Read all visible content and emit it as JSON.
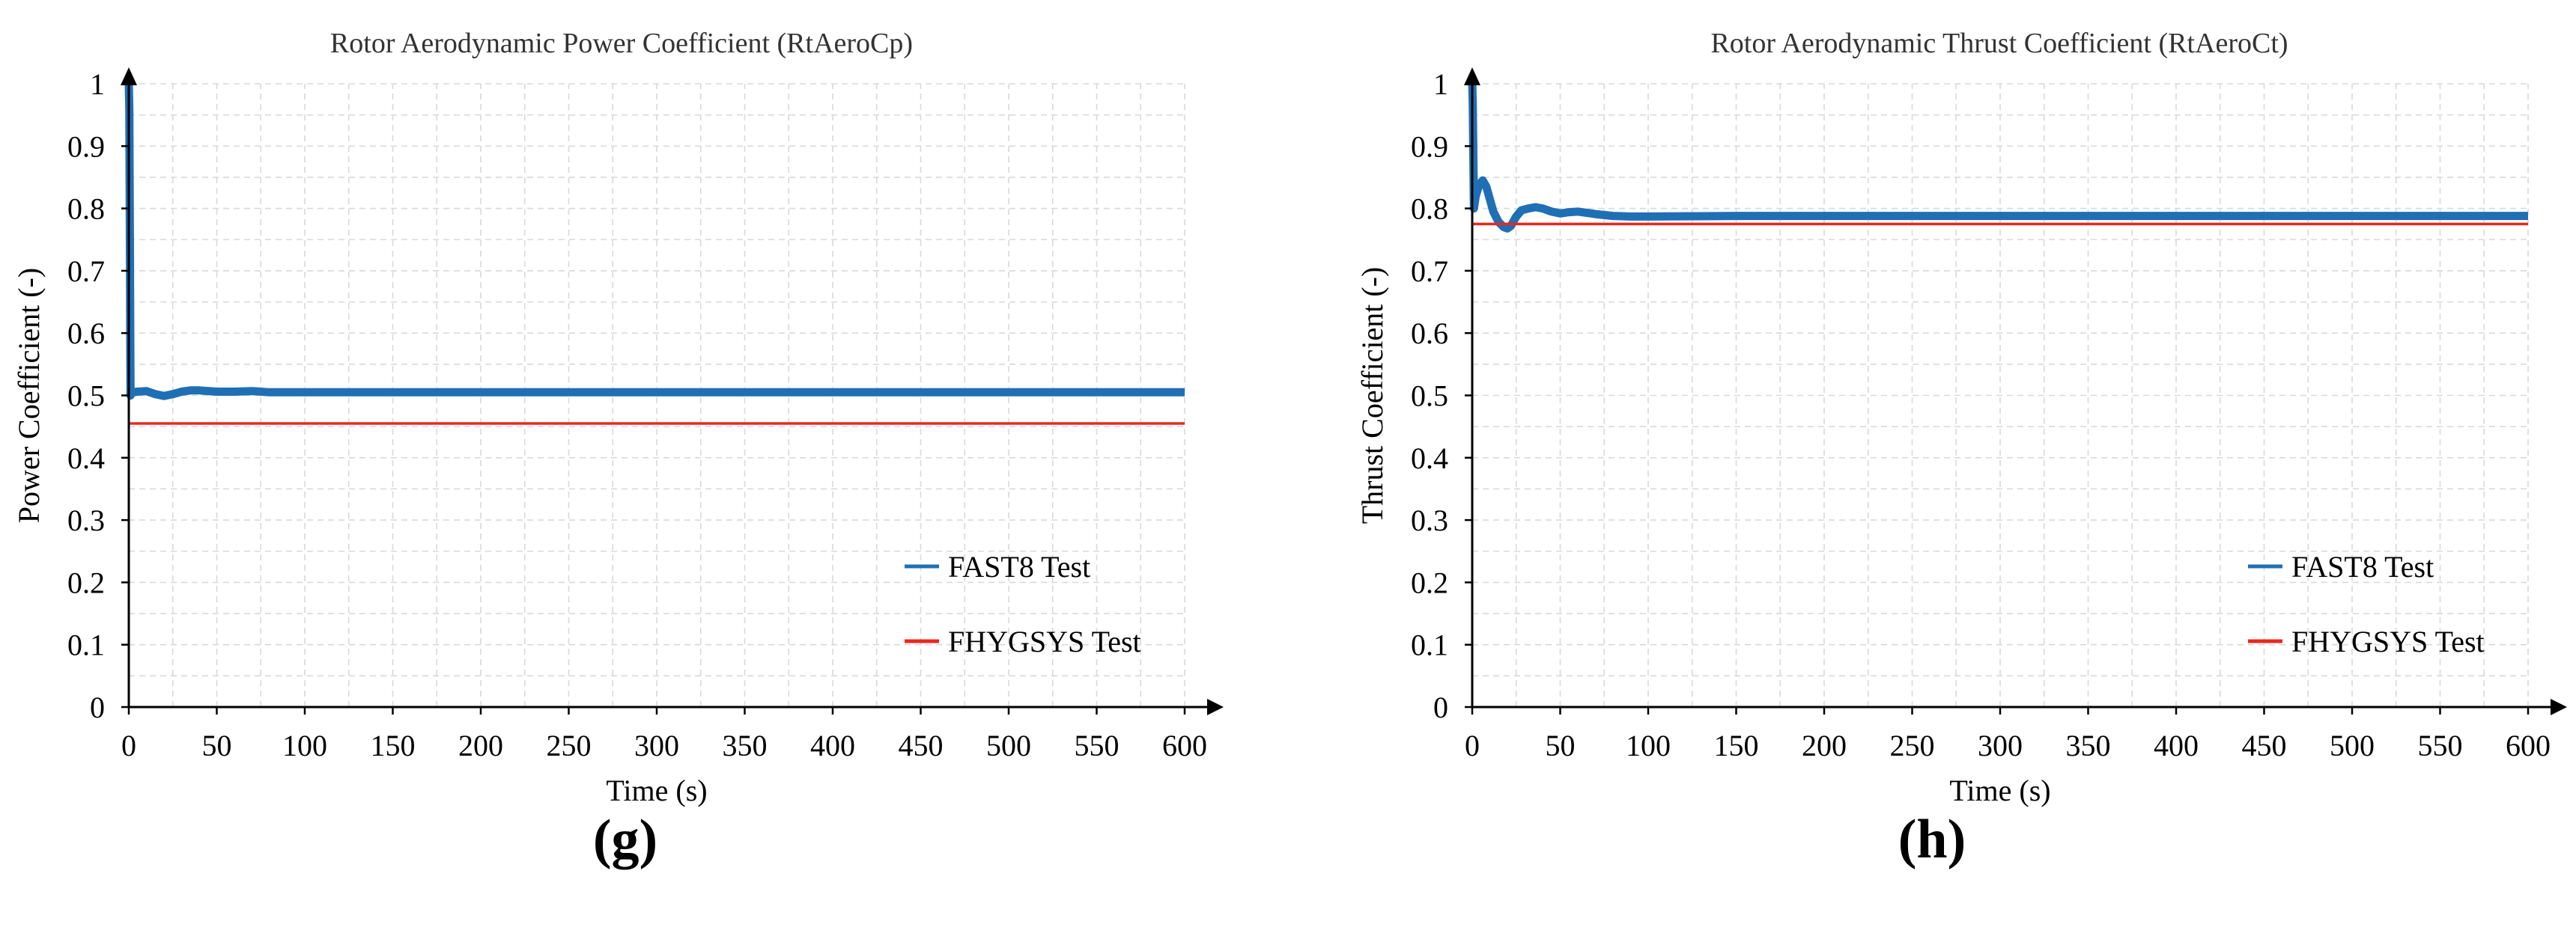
{
  "colors": {
    "fast8": "#1f6fb5",
    "fhygsys": "#e8281e",
    "grid": "#d9d9d9",
    "axis": "#000000"
  },
  "panels": [
    {
      "letter": "(g)",
      "chart_data": {
        "type": "line",
        "title": "Rotor Aerodynamic Power Coefficient (RtAeroCp)",
        "xlabel": "Time (s)",
        "ylabel": "Power Coefficient (-)",
        "xlim": [
          0,
          600
        ],
        "ylim": [
          0,
          1
        ],
        "xticks": [
          0,
          50,
          100,
          150,
          200,
          250,
          300,
          350,
          400,
          450,
          500,
          550,
          600
        ],
        "yticks": [
          0,
          0.1,
          0.2,
          0.3,
          0.4,
          0.5,
          0.6,
          0.7,
          0.8,
          0.9,
          1
        ],
        "xtick_labels": [
          "0",
          "50",
          "100",
          "150",
          "200",
          "250",
          "300",
          "350",
          "400",
          "450",
          "500",
          "550",
          "600"
        ],
        "ytick_labels": [
          "0",
          "0.1",
          "0.2",
          "0.3",
          "0.4",
          "0.5",
          "0.6",
          "0.7",
          "0.8",
          "0.9",
          "1"
        ],
        "grid": true,
        "legend_position": "bottom-right",
        "series": [
          {
            "name": "FAST8 Test",
            "color_key": "fast8",
            "x": [
              0,
              0.3,
              1,
              2,
              5,
              10,
              15,
              20,
              25,
              30,
              35,
              40,
              50,
              60,
              70,
              80,
              100,
              150,
              200,
              300,
              400,
              500,
              600
            ],
            "y": [
              1.0,
              0.96,
              0.5,
              0.505,
              0.506,
              0.507,
              0.502,
              0.499,
              0.502,
              0.506,
              0.508,
              0.508,
              0.506,
              0.506,
              0.507,
              0.505,
              0.505,
              0.505,
              0.505,
              0.505,
              0.505,
              0.505,
              0.505
            ]
          },
          {
            "name": "FHYGSYS Test",
            "color_key": "fhygsys",
            "x": [
              0,
              600
            ],
            "y": [
              0.455,
              0.455
            ]
          }
        ]
      }
    },
    {
      "letter": "(h)",
      "chart_data": {
        "type": "line",
        "title": "Rotor Aerodynamic Thrust Coefficient (RtAeroCt)",
        "xlabel": "Time (s)",
        "ylabel": "Thrust Coefficient (-)",
        "xlim": [
          0,
          600
        ],
        "ylim": [
          0,
          1
        ],
        "xticks": [
          0,
          50,
          100,
          150,
          200,
          250,
          300,
          350,
          400,
          450,
          500,
          550,
          600
        ],
        "yticks": [
          0,
          0.1,
          0.2,
          0.3,
          0.4,
          0.5,
          0.6,
          0.7,
          0.8,
          0.9,
          1
        ],
        "xtick_labels": [
          "0",
          "50",
          "100",
          "150",
          "200",
          "250",
          "300",
          "350",
          "400",
          "450",
          "500",
          "550",
          "600"
        ],
        "ytick_labels": [
          "0",
          "0.1",
          "0.2",
          "0.3",
          "0.4",
          "0.5",
          "0.6",
          "0.7",
          "0.8",
          "0.9",
          "1"
        ],
        "grid": true,
        "legend_position": "bottom-right",
        "series": [
          {
            "name": "FAST8 Test",
            "color_key": "fast8",
            "x": [
              0,
              0.3,
              1,
              2,
              4,
              6,
              8,
              10,
              12,
              15,
              18,
              20,
              22,
              25,
              28,
              32,
              36,
              40,
              45,
              50,
              55,
              60,
              65,
              70,
              80,
              90,
              100,
              150,
              200,
              300,
              400,
              500,
              600
            ],
            "y": [
              1.0,
              0.97,
              0.8,
              0.82,
              0.838,
              0.845,
              0.835,
              0.815,
              0.795,
              0.778,
              0.77,
              0.768,
              0.772,
              0.787,
              0.797,
              0.8,
              0.802,
              0.8,
              0.795,
              0.792,
              0.794,
              0.795,
              0.793,
              0.791,
              0.788,
              0.787,
              0.787,
              0.788,
              0.788,
              0.788,
              0.788,
              0.788,
              0.788
            ]
          },
          {
            "name": "FHYGSYS Test",
            "color_key": "fhygsys",
            "x": [
              0,
              600
            ],
            "y": [
              0.775,
              0.775
            ]
          }
        ]
      }
    }
  ]
}
